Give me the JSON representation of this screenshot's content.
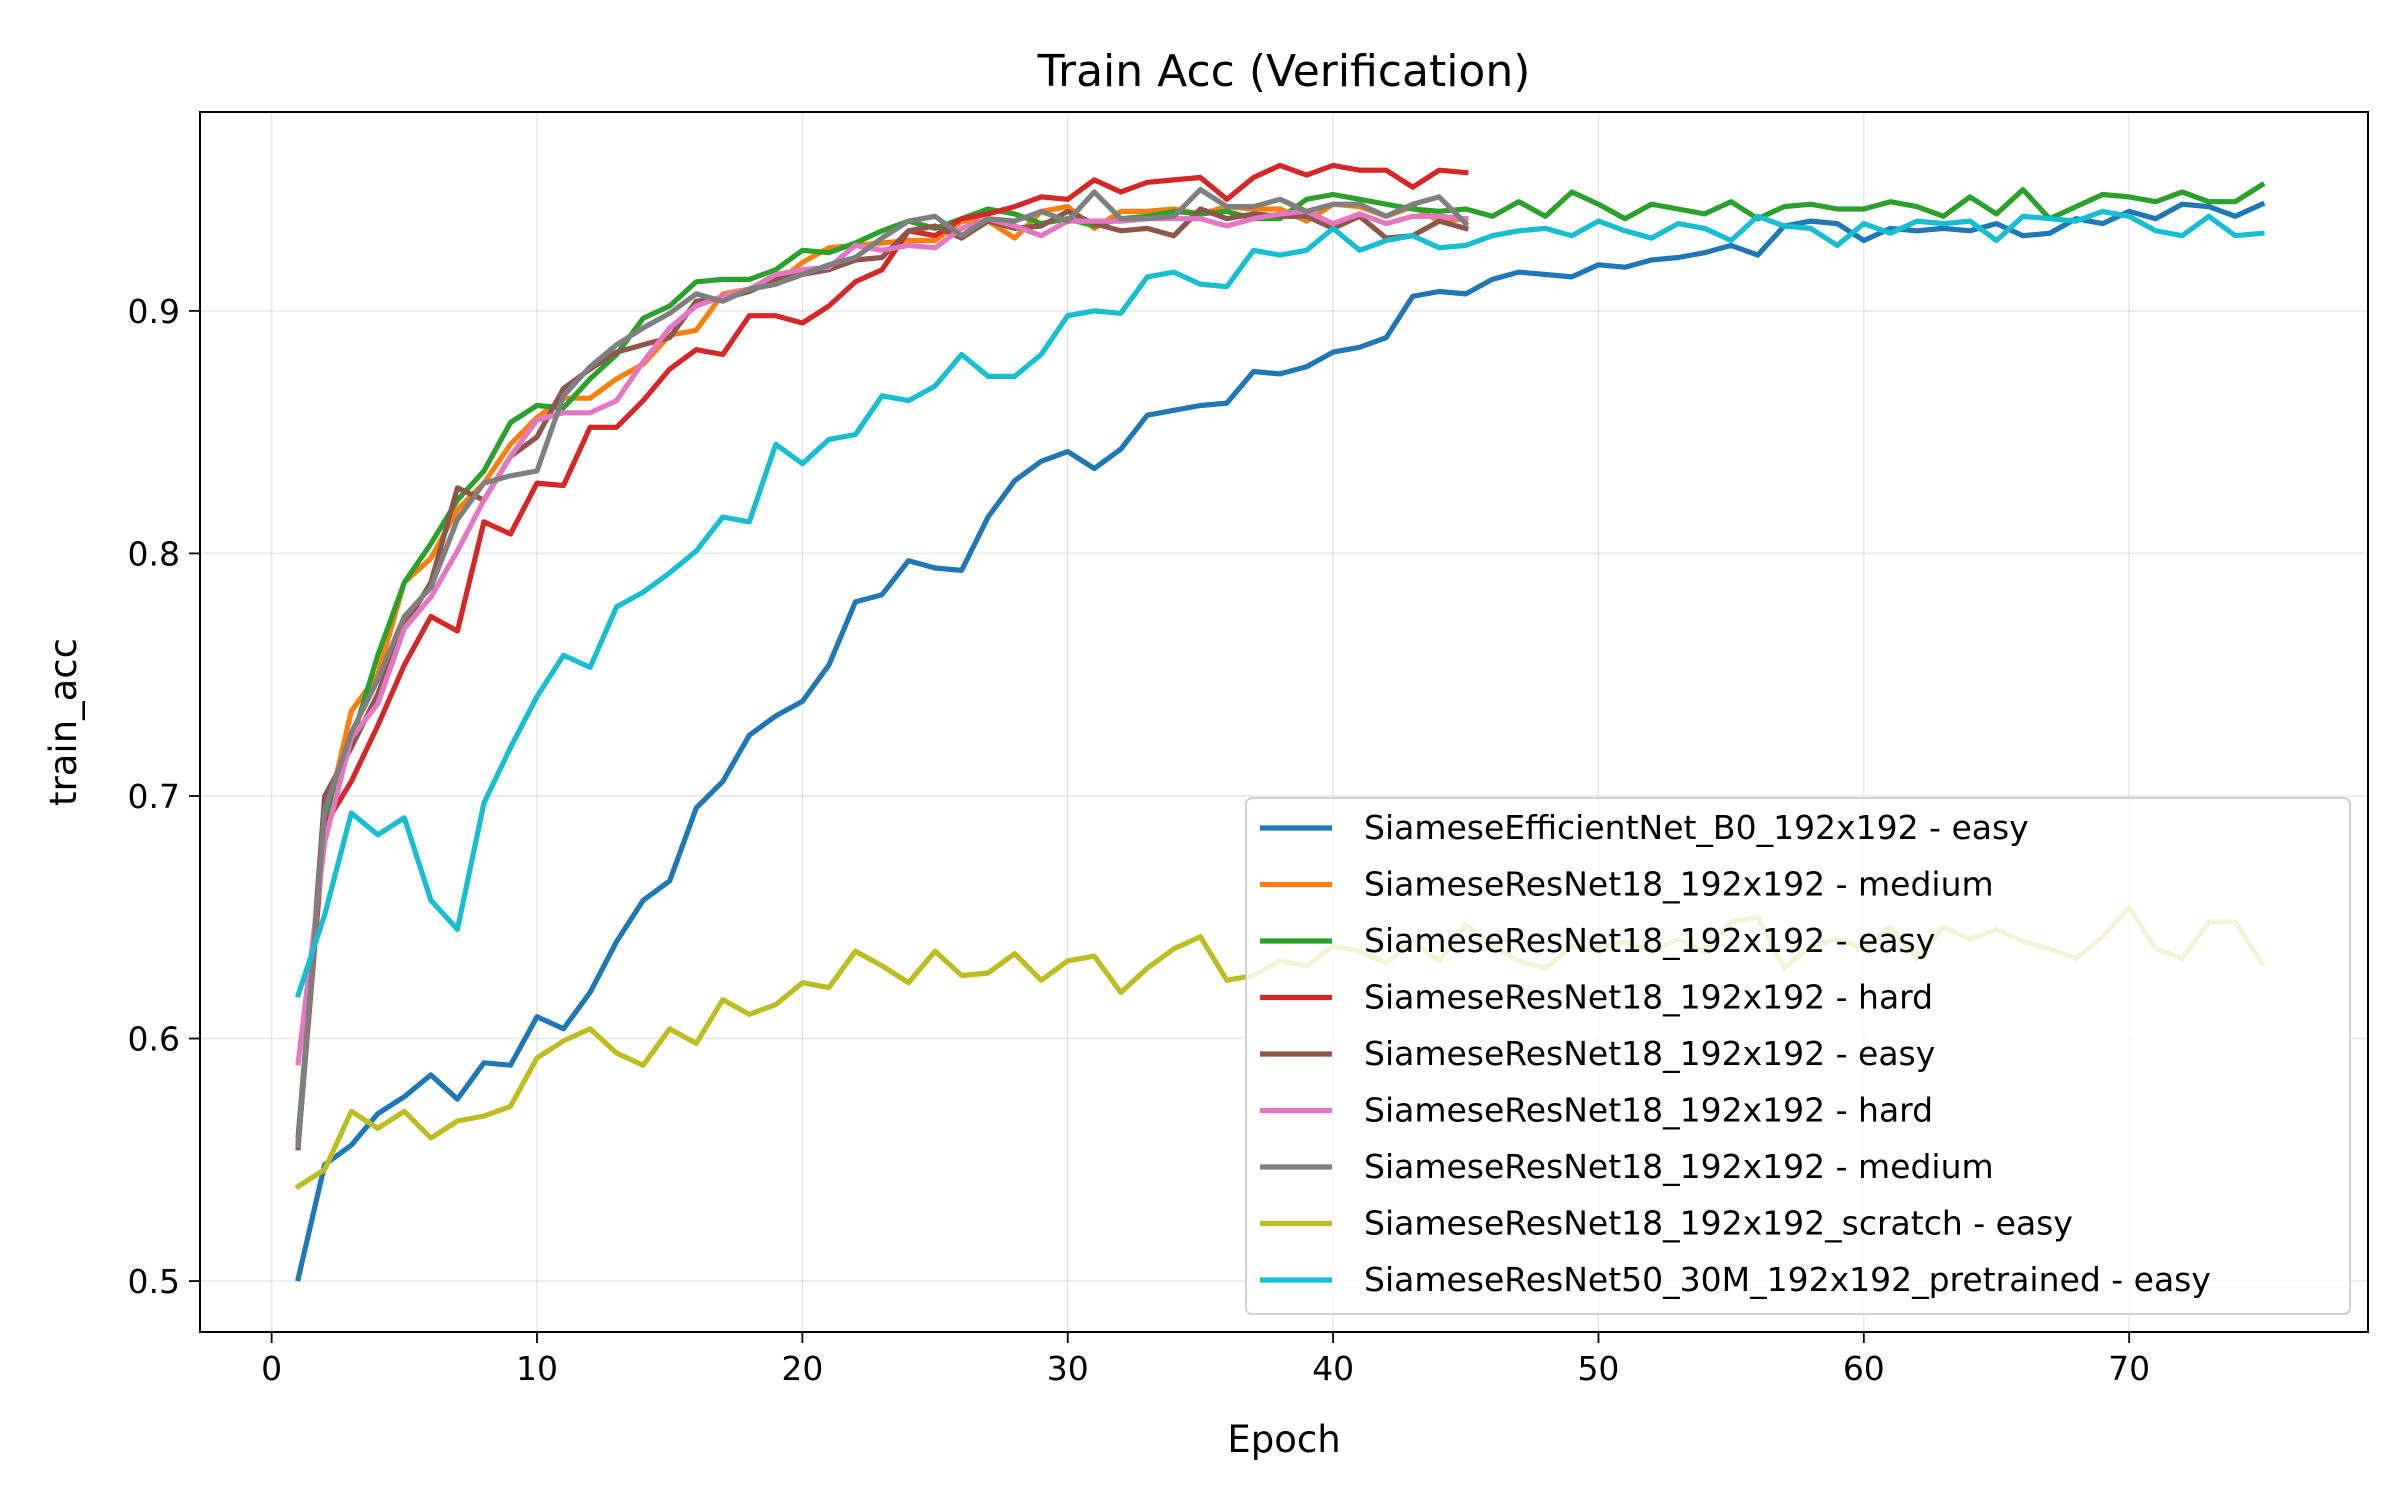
{
  "chart_data": {
    "type": "line",
    "title": "Train Acc (Verification)",
    "xlabel": "Epoch",
    "ylabel": "train_acc",
    "xlim": [
      -2.7,
      79.0
    ],
    "ylim": [
      0.479,
      0.982
    ],
    "xticks": [
      0,
      10,
      20,
      30,
      40,
      50,
      60,
      70
    ],
    "yticks": [
      0.5,
      0.6,
      0.7,
      0.8,
      0.9
    ],
    "ytick_labels": [
      "0.5",
      "0.6",
      "0.7",
      "0.8",
      "0.9"
    ],
    "grid": true,
    "legend_position": "lower-right",
    "series": [
      {
        "name": "SiameseEfficientNet_B0_192x192 - easy",
        "color": "#1f77b4",
        "x": [
          1,
          2,
          3,
          4,
          5,
          6,
          7,
          8,
          9,
          10,
          11,
          12,
          13,
          14,
          15,
          16,
          17,
          18,
          19,
          20,
          21,
          22,
          23,
          24,
          25,
          26,
          27,
          28,
          29,
          30,
          31,
          32,
          33,
          34,
          35,
          36,
          37,
          38,
          39,
          40,
          41,
          42,
          43,
          44,
          45,
          46,
          47,
          48,
          49,
          50,
          51,
          52,
          53,
          54,
          55,
          56,
          57,
          58,
          59,
          60,
          61,
          62,
          63,
          64,
          65,
          66,
          67,
          68,
          69,
          70,
          71,
          72,
          73,
          74,
          75
        ],
        "y": [
          0.501,
          0.548,
          0.556,
          0.569,
          0.576,
          0.585,
          0.575,
          0.59,
          0.589,
          0.609,
          0.604,
          0.619,
          0.64,
          0.657,
          0.665,
          0.695,
          0.706,
          0.725,
          0.733,
          0.739,
          0.754,
          0.78,
          0.783,
          0.797,
          0.794,
          0.793,
          0.815,
          0.83,
          0.838,
          0.842,
          0.835,
          0.843,
          0.857,
          0.859,
          0.861,
          0.862,
          0.875,
          0.874,
          0.877,
          0.883,
          0.885,
          0.889,
          0.906,
          0.908,
          0.907,
          0.913,
          0.916,
          0.915,
          0.914,
          0.919,
          0.918,
          0.921,
          0.922,
          0.924,
          0.927,
          0.923,
          0.935,
          0.937,
          0.936,
          0.929,
          0.934,
          0.933,
          0.934,
          0.933,
          0.936,
          0.931,
          0.932,
          0.938,
          0.936,
          0.941,
          0.938,
          0.944,
          0.943,
          0.939,
          0.944
        ]
      },
      {
        "name": "SiameseResNet18_192x192 - medium",
        "color": "#ff7f0e",
        "x": [
          1,
          2,
          3,
          4,
          5,
          6,
          7,
          8,
          9,
          10,
          11,
          12,
          13,
          14,
          15,
          16,
          17,
          18,
          19,
          20,
          21,
          22,
          23,
          24,
          25,
          26,
          27,
          28,
          29,
          30,
          31,
          32,
          33,
          34,
          35,
          36,
          37,
          38,
          39,
          40,
          41,
          42,
          43,
          44,
          45
        ],
        "y": [
          0.558,
          0.688,
          0.735,
          0.75,
          0.788,
          0.798,
          0.818,
          0.829,
          0.845,
          0.856,
          0.864,
          0.864,
          0.872,
          0.878,
          0.89,
          0.892,
          0.907,
          0.909,
          0.911,
          0.92,
          0.926,
          0.927,
          0.928,
          0.929,
          0.929,
          0.937,
          0.937,
          0.93,
          0.941,
          0.943,
          0.934,
          0.941,
          0.941,
          0.942,
          0.94,
          0.943,
          0.942,
          0.942,
          0.937,
          0.944,
          0.943,
          0.939,
          0.943,
          0.937,
          0.938
        ]
      },
      {
        "name": "SiameseResNet18_192x192 - easy",
        "color": "#2ca02c",
        "x": [
          1,
          2,
          3,
          4,
          5,
          6,
          7,
          8,
          9,
          10,
          11,
          12,
          13,
          14,
          15,
          16,
          17,
          18,
          19,
          20,
          21,
          22,
          23,
          24,
          25,
          26,
          27,
          28,
          29,
          30,
          31,
          32,
          33,
          34,
          35,
          36,
          37,
          38,
          39,
          40,
          41,
          42,
          43,
          44,
          45,
          46,
          47,
          48,
          49,
          50,
          51,
          52,
          53,
          54,
          55,
          56,
          57,
          58,
          59,
          60,
          61,
          62,
          63,
          64,
          65,
          66,
          67,
          68,
          69,
          70,
          71,
          72,
          73,
          74,
          75
        ],
        "y": [
          0.56,
          0.69,
          0.722,
          0.758,
          0.788,
          0.804,
          0.822,
          0.834,
          0.854,
          0.861,
          0.86,
          0.872,
          0.882,
          0.897,
          0.902,
          0.912,
          0.913,
          0.913,
          0.917,
          0.925,
          0.924,
          0.928,
          0.933,
          0.937,
          0.934,
          0.938,
          0.942,
          0.94,
          0.936,
          0.938,
          0.935,
          0.938,
          0.939,
          0.941,
          0.94,
          0.941,
          0.938,
          0.938,
          0.946,
          0.948,
          0.946,
          0.944,
          0.942,
          0.941,
          0.942,
          0.939,
          0.945,
          0.939,
          0.949,
          0.944,
          0.938,
          0.944,
          0.942,
          0.94,
          0.945,
          0.938,
          0.943,
          0.944,
          0.942,
          0.942,
          0.945,
          0.943,
          0.939,
          0.947,
          0.94,
          0.95,
          0.938,
          0.943,
          0.948,
          0.947,
          0.945,
          0.949,
          0.945,
          0.945,
          0.952
        ]
      },
      {
        "name": "SiameseResNet18_192x192 - hard",
        "color": "#d62728",
        "x": [
          1,
          2,
          3,
          4,
          5,
          6,
          7,
          8,
          9,
          10,
          11,
          12,
          13,
          14,
          15,
          16,
          17,
          18,
          19,
          20,
          21,
          22,
          23,
          24,
          25,
          26,
          27,
          28,
          29,
          30,
          31,
          32,
          33,
          34,
          35,
          36,
          37,
          38,
          39,
          40,
          41,
          42,
          43,
          44,
          45
        ],
        "y": [
          0.556,
          0.688,
          0.706,
          0.729,
          0.754,
          0.774,
          0.768,
          0.813,
          0.808,
          0.829,
          0.828,
          0.852,
          0.852,
          0.863,
          0.876,
          0.884,
          0.882,
          0.898,
          0.898,
          0.895,
          0.902,
          0.912,
          0.917,
          0.933,
          0.931,
          0.938,
          0.94,
          0.943,
          0.947,
          0.946,
          0.954,
          0.949,
          0.953,
          0.954,
          0.955,
          0.946,
          0.955,
          0.96,
          0.956,
          0.96,
          0.958,
          0.958,
          0.951,
          0.958,
          0.957
        ]
      },
      {
        "name": "SiameseResNet18_192x192 - easy",
        "color": "#8c564b",
        "x": [
          1,
          2,
          3,
          4,
          5,
          6,
          7,
          8,
          9,
          10,
          11,
          12,
          13,
          14,
          15,
          16,
          17,
          18,
          19,
          20,
          21,
          22,
          23,
          24,
          25,
          26,
          27,
          28,
          29,
          30,
          31,
          32,
          33,
          34,
          35,
          36,
          37,
          38,
          39,
          40,
          41,
          42,
          43,
          44,
          45
        ],
        "y": [
          0.555,
          0.7,
          0.72,
          0.742,
          0.77,
          0.788,
          0.827,
          0.822,
          0.84,
          0.848,
          0.868,
          0.876,
          0.883,
          0.886,
          0.889,
          0.904,
          0.905,
          0.908,
          0.913,
          0.915,
          0.917,
          0.921,
          0.922,
          0.933,
          0.935,
          0.93,
          0.937,
          0.934,
          0.935,
          0.941,
          0.936,
          0.933,
          0.934,
          0.931,
          0.942,
          0.938,
          0.94,
          0.939,
          0.939,
          0.934,
          0.939,
          0.93,
          0.931,
          0.937,
          0.934
        ]
      },
      {
        "name": "SiameseResNet18_192x192 - hard",
        "color": "#e377c2",
        "x": [
          1,
          2,
          3,
          4,
          5,
          6,
          7,
          8,
          9,
          10,
          11,
          12,
          13,
          14,
          15,
          16,
          17,
          18,
          19,
          20,
          21,
          22,
          23,
          24,
          25,
          26,
          27,
          28,
          29,
          30,
          31,
          32,
          33,
          34,
          35,
          36,
          37,
          38,
          39,
          40,
          41,
          42,
          43,
          44,
          45
        ],
        "y": [
          0.59,
          0.681,
          0.724,
          0.738,
          0.769,
          0.782,
          0.801,
          0.822,
          0.84,
          0.855,
          0.858,
          0.858,
          0.863,
          0.879,
          0.893,
          0.902,
          0.906,
          0.909,
          0.915,
          0.917,
          0.918,
          0.927,
          0.925,
          0.927,
          0.926,
          0.934,
          0.938,
          0.935,
          0.931,
          0.937,
          0.937,
          0.937,
          0.938,
          0.938,
          0.938,
          0.935,
          0.938,
          0.94,
          0.941,
          0.936,
          0.94,
          0.936,
          0.939,
          0.939,
          0.938
        ]
      },
      {
        "name": "SiameseResNet18_192x192 - medium",
        "color": "#7f7f7f",
        "x": [
          1,
          2,
          3,
          4,
          5,
          6,
          7,
          8,
          9,
          10,
          11,
          12,
          13,
          14,
          15,
          16,
          17,
          18,
          19,
          20,
          21,
          22,
          23,
          24,
          25,
          26,
          27,
          28,
          29,
          30,
          31,
          32,
          33,
          34,
          35,
          36,
          37,
          38,
          39,
          40,
          41,
          42,
          43,
          44,
          45
        ],
        "y": [
          0.556,
          0.694,
          0.726,
          0.748,
          0.774,
          0.786,
          0.814,
          0.829,
          0.832,
          0.834,
          0.865,
          0.877,
          0.886,
          0.893,
          0.899,
          0.907,
          0.904,
          0.909,
          0.911,
          0.915,
          0.919,
          0.922,
          0.93,
          0.937,
          0.939,
          0.931,
          0.938,
          0.937,
          0.941,
          0.937,
          0.949,
          0.938,
          0.938,
          0.939,
          0.95,
          0.943,
          0.943,
          0.946,
          0.941,
          0.944,
          0.944,
          0.939,
          0.944,
          0.947,
          0.936
        ]
      },
      {
        "name": "SiameseResNet18_192x192_scratch - easy",
        "color": "#bcbd22",
        "x": [
          1,
          2,
          3,
          4,
          5,
          6,
          7,
          8,
          9,
          10,
          11,
          12,
          13,
          14,
          15,
          16,
          17,
          18,
          19,
          20,
          21,
          22,
          23,
          24,
          25,
          26,
          27,
          28,
          29,
          30,
          31,
          32,
          33,
          34,
          35,
          36,
          37,
          38,
          39,
          40,
          41,
          42,
          43,
          44,
          45,
          46,
          47,
          48,
          49,
          50,
          51,
          52,
          53,
          54,
          55,
          56,
          57,
          58,
          59,
          60,
          61,
          62,
          63,
          64,
          65,
          66,
          67,
          68,
          69,
          70,
          71,
          72,
          73,
          74,
          75
        ],
        "y": [
          0.539,
          0.546,
          0.57,
          0.563,
          0.57,
          0.559,
          0.566,
          0.568,
          0.572,
          0.592,
          0.599,
          0.604,
          0.594,
          0.589,
          0.604,
          0.598,
          0.616,
          0.61,
          0.614,
          0.623,
          0.621,
          0.636,
          0.63,
          0.623,
          0.636,
          0.626,
          0.627,
          0.635,
          0.624,
          0.632,
          0.634,
          0.619,
          0.629,
          0.637,
          0.642,
          0.624,
          0.626,
          0.632,
          0.63,
          0.638,
          0.636,
          0.631,
          0.64,
          0.632,
          0.647,
          0.638,
          0.632,
          0.629,
          0.638,
          0.637,
          0.64,
          0.636,
          0.641,
          0.636,
          0.648,
          0.65,
          0.629,
          0.638,
          0.641,
          0.637,
          0.646,
          0.633,
          0.646,
          0.641,
          0.645,
          0.64,
          0.637,
          0.633,
          0.642,
          0.654,
          0.637,
          0.633,
          0.648,
          0.648,
          0.631
        ]
      },
      {
        "name": "SiameseResNet50_30M_192x192_pretrained - easy",
        "color": "#17becf",
        "x": [
          1,
          2,
          3,
          4,
          5,
          6,
          7,
          8,
          9,
          10,
          11,
          12,
          13,
          14,
          15,
          16,
          17,
          18,
          19,
          20,
          21,
          22,
          23,
          24,
          25,
          26,
          27,
          28,
          29,
          30,
          31,
          32,
          33,
          34,
          35,
          36,
          37,
          38,
          39,
          40,
          41,
          42,
          43,
          44,
          45,
          46,
          47,
          48,
          49,
          50,
          51,
          52,
          53,
          54,
          55,
          56,
          57,
          58,
          59,
          60,
          61,
          62,
          63,
          64,
          65,
          66,
          67,
          68,
          69,
          70,
          71,
          72,
          73,
          74,
          75
        ],
        "y": [
          0.618,
          0.651,
          0.693,
          0.684,
          0.691,
          0.657,
          0.645,
          0.697,
          0.72,
          0.741,
          0.758,
          0.753,
          0.778,
          0.784,
          0.792,
          0.801,
          0.815,
          0.813,
          0.845,
          0.837,
          0.847,
          0.849,
          0.865,
          0.863,
          0.869,
          0.882,
          0.873,
          0.873,
          0.882,
          0.898,
          0.9,
          0.899,
          0.914,
          0.916,
          0.911,
          0.91,
          0.925,
          0.923,
          0.925,
          0.934,
          0.925,
          0.929,
          0.931,
          0.926,
          0.927,
          0.931,
          0.933,
          0.934,
          0.931,
          0.937,
          0.933,
          0.93,
          0.936,
          0.934,
          0.929,
          0.939,
          0.935,
          0.934,
          0.927,
          0.936,
          0.932,
          0.937,
          0.936,
          0.937,
          0.929,
          0.939,
          0.938,
          0.937,
          0.941,
          0.939,
          0.933,
          0.931,
          0.939,
          0.931,
          0.932
        ]
      }
    ]
  }
}
